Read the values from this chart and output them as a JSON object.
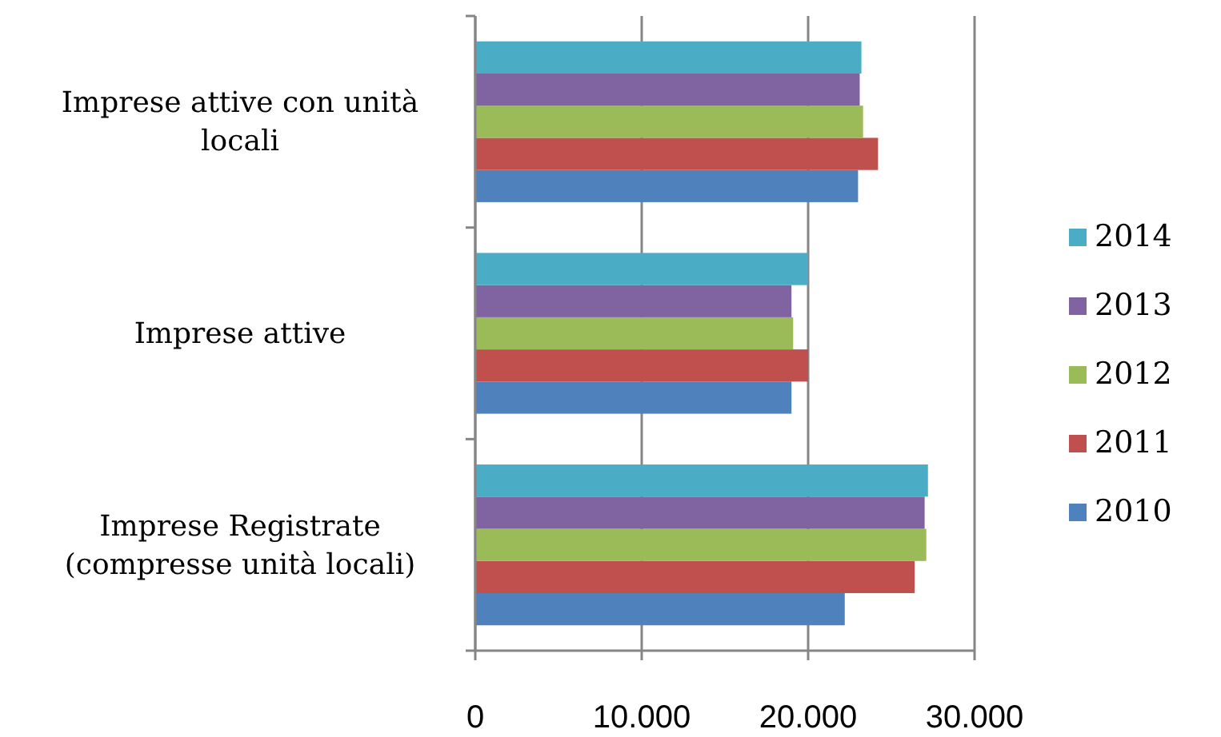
{
  "chart_data": {
    "type": "bar",
    "orientation": "horizontal",
    "categories": [
      "Imprese attive con unità locali",
      "Imprese attive",
      "Imprese Registrate (compresse unità locali)"
    ],
    "series": [
      {
        "name": "2010",
        "color": "#4f81bd",
        "values": [
          23000,
          19000,
          22200
        ]
      },
      {
        "name": "2011",
        "color": "#c0504d",
        "values": [
          24200,
          20000,
          26400
        ]
      },
      {
        "name": "2012",
        "color": "#9bbb59",
        "values": [
          23300,
          19100,
          27100
        ]
      },
      {
        "name": "2013",
        "color": "#8064a2",
        "values": [
          23100,
          19000,
          27000
        ]
      },
      {
        "name": "2014",
        "color": "#4bacc6",
        "values": [
          23200,
          20000,
          27200
        ]
      }
    ],
    "xlim": [
      0,
      30000
    ],
    "xticks": [
      {
        "value": 0,
        "label": "0"
      },
      {
        "value": 10000,
        "label": "10.000"
      },
      {
        "value": 20000,
        "label": "20.000"
      },
      {
        "value": 30000,
        "label": "30.000"
      }
    ],
    "grid": "x",
    "legend": "right"
  }
}
